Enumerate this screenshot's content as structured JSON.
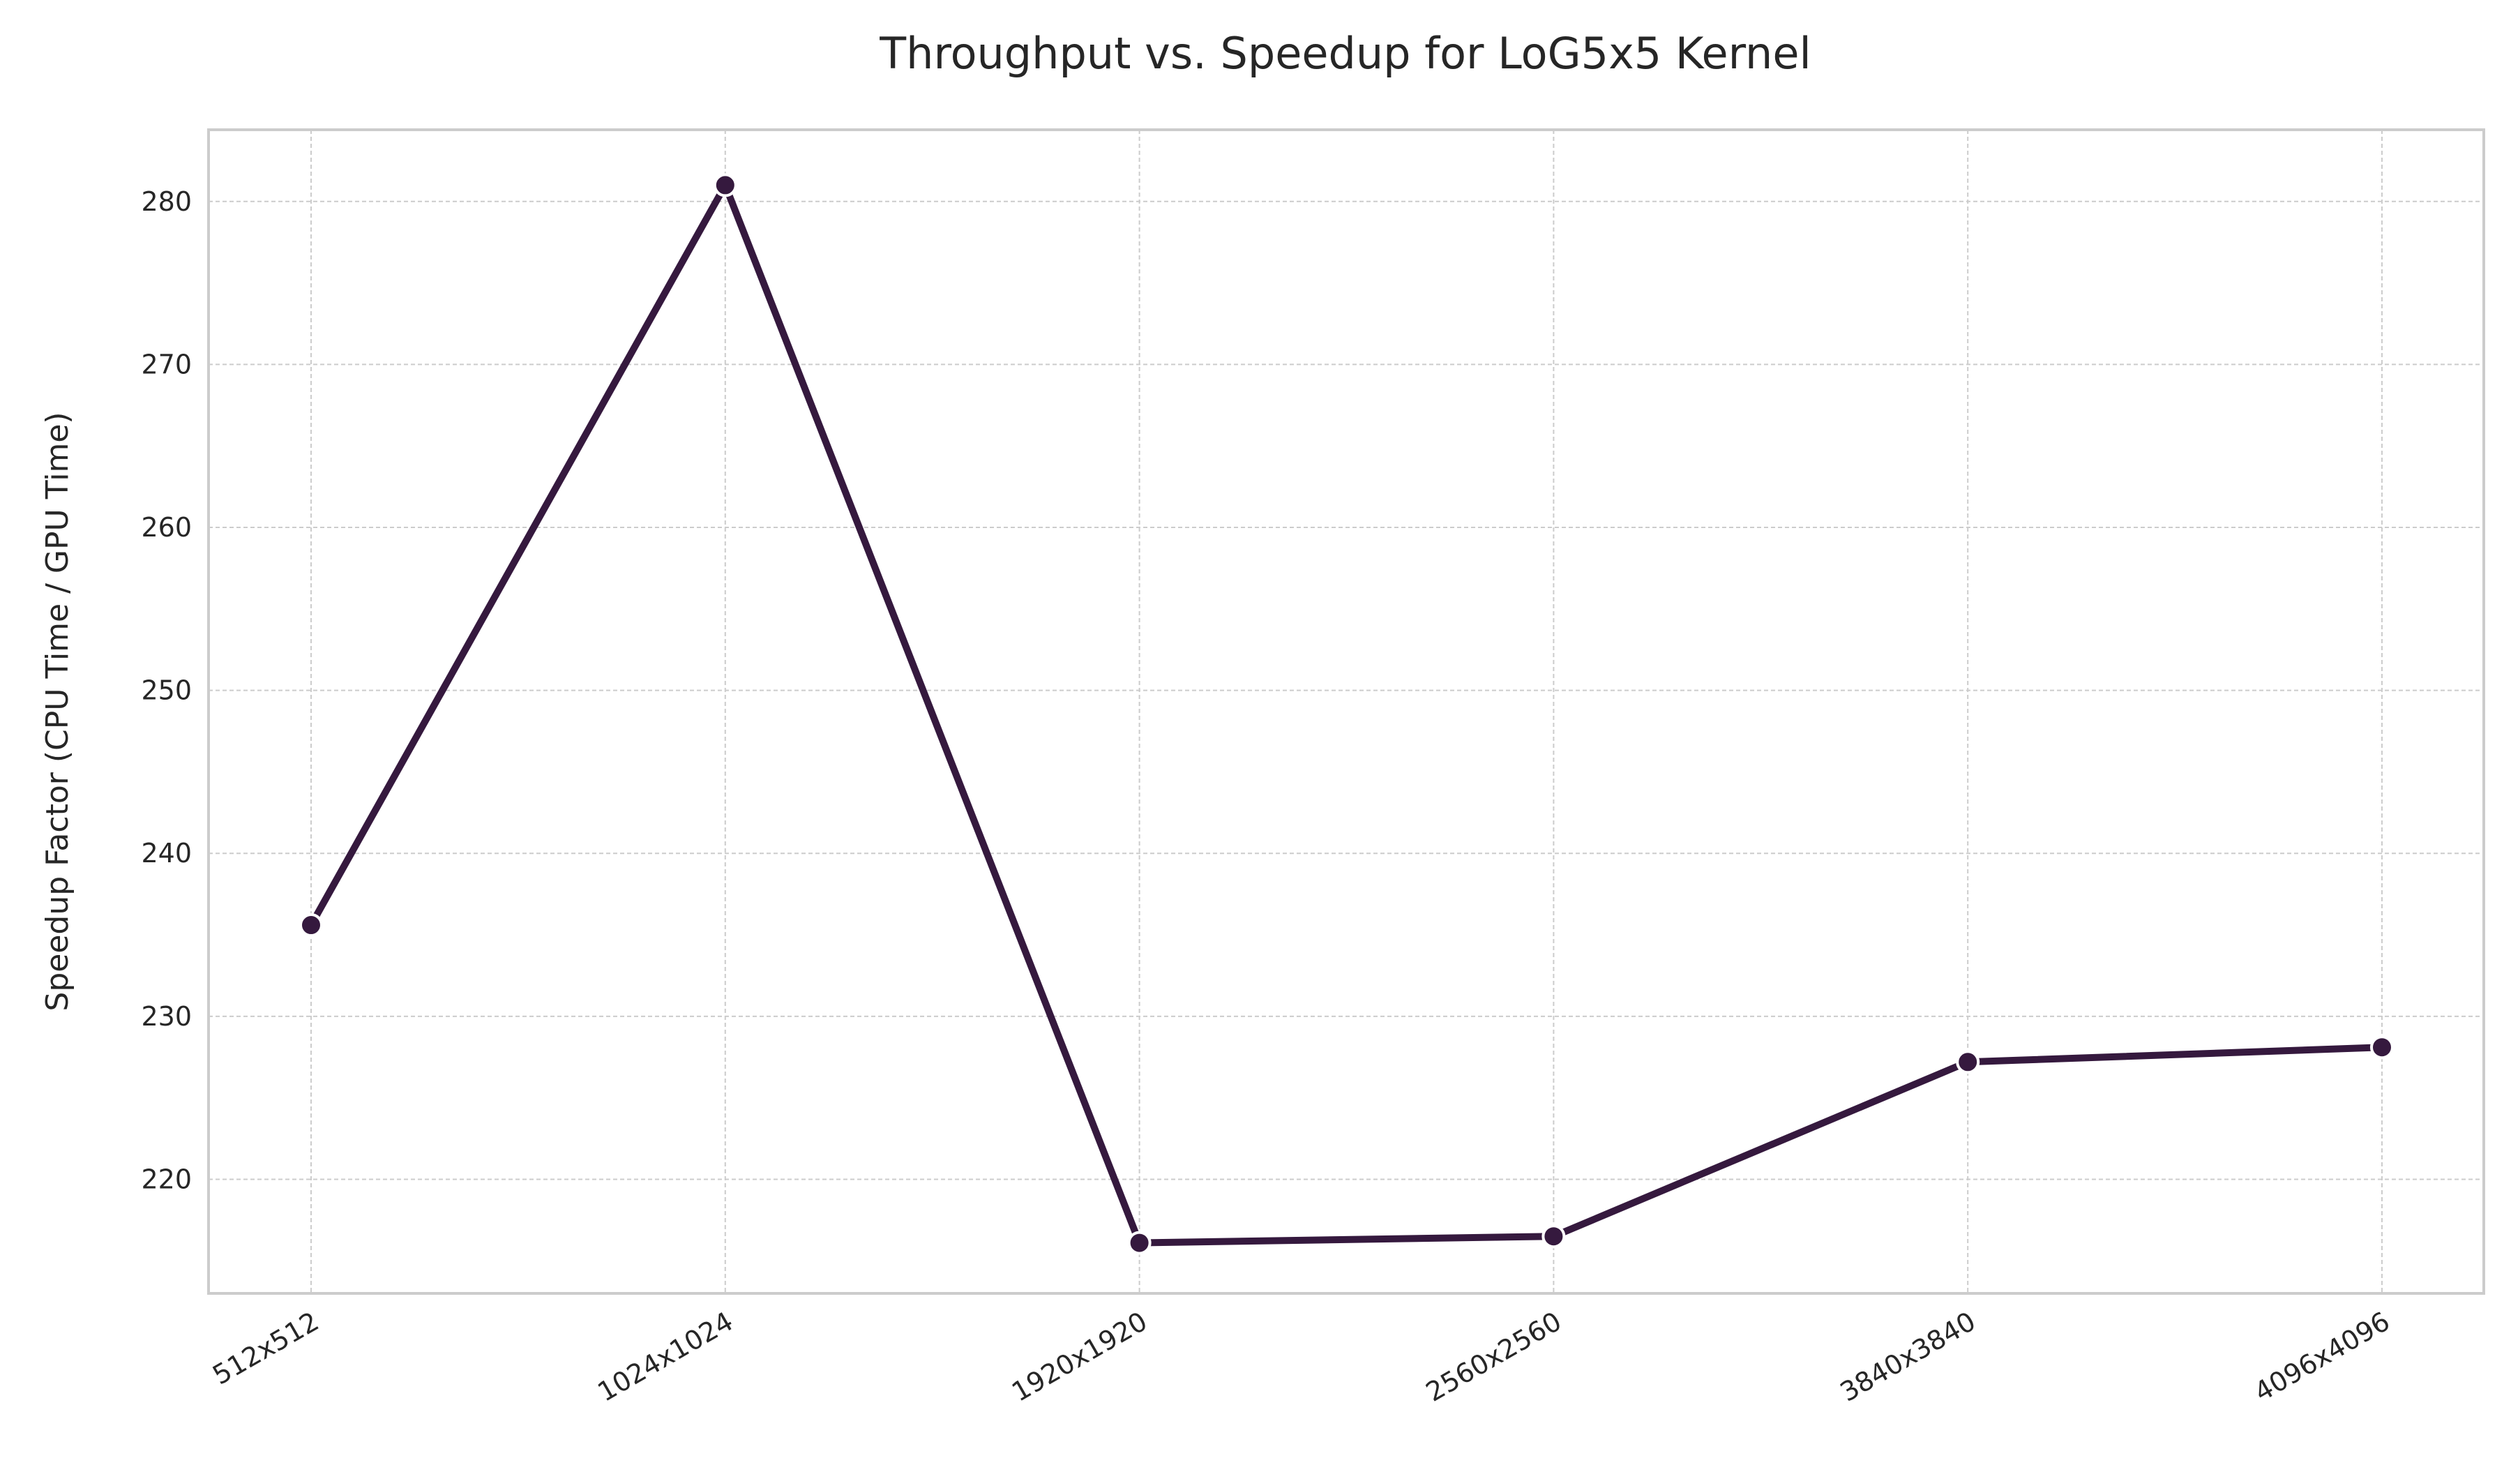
{
  "chart_data": {
    "type": "line",
    "title": "Throughput vs. Speedup for LoG5x5 Kernel",
    "xlabel": "",
    "ylabel": "Speedup Factor (CPU Time / GPU Time)",
    "categories": [
      "512x512",
      "1024x1024",
      "1920x1920",
      "2560x2560",
      "3840x3840",
      "4096x4096"
    ],
    "series": [
      {
        "values": [
          235.6,
          281.0,
          216.1,
          216.5,
          227.2,
          228.1
        ]
      }
    ],
    "ylim": [
      213,
      284.4
    ],
    "yticks": [
      220,
      230,
      240,
      250,
      260,
      270,
      280
    ],
    "grid": true,
    "line_color": "#35193e"
  }
}
